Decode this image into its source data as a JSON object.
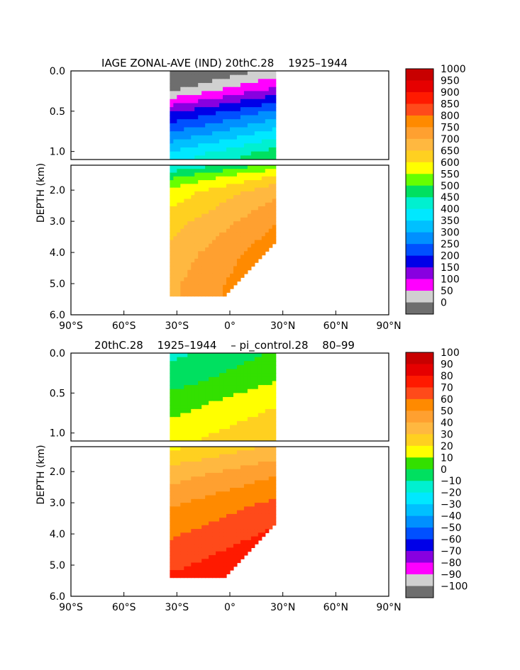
{
  "chart_data": [
    {
      "type": "heatmap",
      "title": "IAGE ZONAL-AVE (IND) 20thC.28 　1925–1944　",
      "ylabel": "DEPTH (km)",
      "xlabel": "",
      "x_ticks": [
        "90°S",
        "60°S",
        "30°S",
        "0°",
        "30°N",
        "60°N",
        "90°N"
      ],
      "y_ticks_upper": [
        "0.0",
        "0.5",
        "1.0"
      ],
      "y_ticks_lower": [
        "2.0",
        "3.0",
        "4.0",
        "5.0",
        "6.0"
      ],
      "xlim": [
        -90,
        90
      ],
      "ylim_upper": [
        0,
        1.1
      ],
      "ylim_lower": [
        1.2,
        6.0
      ],
      "data_lat_range": [
        -34,
        26
      ],
      "colorbar_labels": [
        "1000",
        "950",
        "900",
        "850",
        "800",
        "750",
        "700",
        "650",
        "600",
        "550",
        "500",
        "450",
        "400",
        "350",
        "300",
        "250",
        "200",
        "150",
        "100",
        "50",
        "0"
      ],
      "colorbar_colors": [
        "#c80000",
        "#e60000",
        "#ff1a00",
        "#ff4a1a",
        "#ff8a00",
        "#ffa030",
        "#ffb840",
        "#ffd020",
        "#ffff00",
        "#66ff00",
        "#00e060",
        "#00f0d0",
        "#00e8ff",
        "#00c0ff",
        "#0090ff",
        "#0050ff",
        "#0000e8",
        "#8800e0",
        "#ff00ff",
        "#d0d0d0",
        "#6e6e6e"
      ],
      "profile_depth": [
        0.0,
        0.2,
        0.5,
        1.0,
        1.5,
        2.0,
        3.0,
        4.0,
        5.0,
        5.4
      ],
      "profile_value": [
        25,
        100,
        260,
        470,
        600,
        680,
        740,
        780,
        800,
        800
      ]
    },
    {
      "type": "heatmap",
      "title": "20thC.28 　1925–1944　 – pi_control.28 　80–99　",
      "ylabel": "DEPTH (km)",
      "xlabel": "",
      "x_ticks": [
        "90°S",
        "60°S",
        "30°S",
        "0°",
        "30°N",
        "60°N",
        "90°N"
      ],
      "y_ticks_upper": [
        "0.0",
        "0.5",
        "1.0"
      ],
      "y_ticks_lower": [
        "2.0",
        "3.0",
        "4.0",
        "5.0",
        "6.0"
      ],
      "xlim": [
        -90,
        90
      ],
      "ylim_upper": [
        0,
        1.1
      ],
      "ylim_lower": [
        1.2,
        6.0
      ],
      "data_lat_range": [
        -34,
        26
      ],
      "colorbar_labels": [
        "100",
        "90",
        "80",
        "70",
        "60",
        "50",
        "40",
        "30",
        "20",
        "10",
        "0",
        "−10",
        "−20",
        "−30",
        "−40",
        "−50",
        "−60",
        "−70",
        "−80",
        "−90",
        "−100"
      ],
      "colorbar_colors": [
        "#c80000",
        "#e60000",
        "#ff1a00",
        "#ff4a1a",
        "#ff8a00",
        "#ffa030",
        "#ffb840",
        "#ffd020",
        "#ffff00",
        "#33e000",
        "#00e060",
        "#00f0d0",
        "#00e8ff",
        "#00c0ff",
        "#0090ff",
        "#0050ff",
        "#0000e8",
        "#8800e0",
        "#ff00ff",
        "#d0d0d0",
        "#6e6e6e"
      ],
      "profile_depth": [
        0.0,
        0.3,
        0.6,
        1.0,
        1.5,
        2.0,
        3.0,
        4.0,
        5.0,
        5.4
      ],
      "profile_value": [
        5,
        12,
        22,
        32,
        42,
        52,
        66,
        76,
        85,
        90
      ]
    }
  ]
}
